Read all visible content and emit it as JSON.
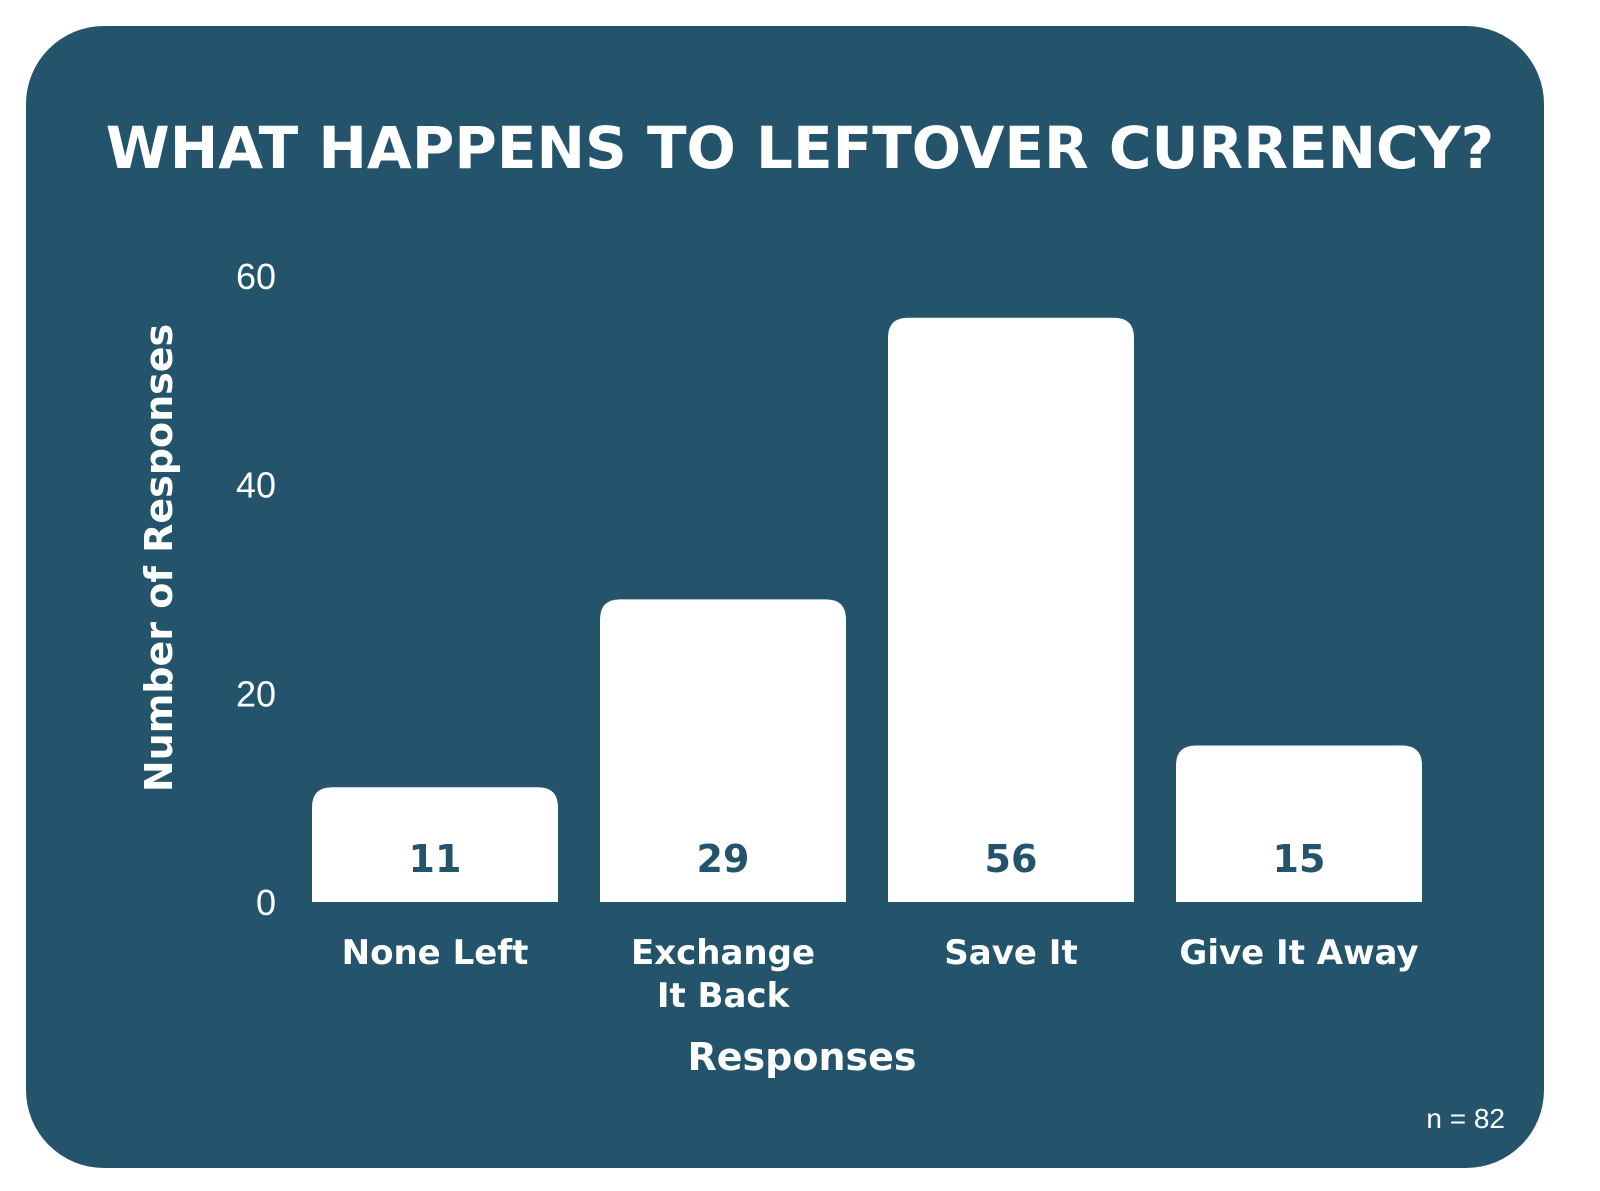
{
  "colors": {
    "background": "#24546b",
    "bar": "#ffffff",
    "text": "#ffffff",
    "value_label": "#24546b"
  },
  "chart_data": {
    "type": "bar",
    "title": "WHAT HAPPENS TO LEFTOVER CURRENCY?",
    "xlabel": "Responses",
    "ylabel": "Number of Responses",
    "categories": [
      [
        "None Left"
      ],
      [
        "Exchange",
        "It Back"
      ],
      [
        "Save It"
      ],
      [
        "Give It Away"
      ]
    ],
    "values": [
      11,
      29,
      56,
      15
    ],
    "ylim": [
      0,
      60
    ],
    "yticks": [
      0,
      20,
      40,
      60
    ],
    "grid": false,
    "legend": "none",
    "note": "n = 82"
  }
}
